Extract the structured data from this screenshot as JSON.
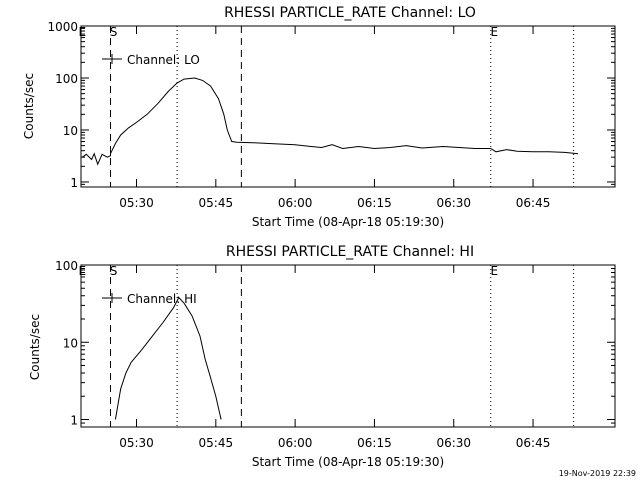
{
  "footer": {
    "timestamp": "19-Nov-2019 22:39"
  },
  "chart_data": [
    {
      "type": "line",
      "title": "RHESSI PARTICLE_RATE Channel: LO",
      "xlabel": "Start Time (08-Apr-18 05:19:30)",
      "ylabel": "Counts/sec",
      "y_scale": "log",
      "ylim": [
        0.8,
        1000
      ],
      "xlim": [
        "05:19:30",
        "07:00:30"
      ],
      "x_ticks": [
        "05:30",
        "05:45",
        "06:00",
        "06:15",
        "06:30",
        "06:45"
      ],
      "y_ticks": [
        "1",
        "10",
        "100",
        "1000"
      ],
      "legend": {
        "entries": [
          "Channel: LO"
        ],
        "placement": "top-left"
      },
      "markers": [
        {
          "label": "S",
          "time": "05:25:05",
          "style": "dashed"
        },
        {
          "label": "",
          "time": "05:49:50",
          "style": "dashed"
        },
        {
          "label": "",
          "time": "05:37:40",
          "style": "dotted"
        },
        {
          "label": "E",
          "time": "06:37:00",
          "style": "dotted"
        },
        {
          "label": "",
          "time": "06:52:40",
          "style": "dotted"
        }
      ],
      "top_marks": [
        {
          "label": "E",
          "time": "05:19:45"
        },
        {
          "label": "S",
          "time": "05:25:40"
        },
        {
          "label": "E",
          "time": "06:37:40"
        }
      ],
      "series": [
        {
          "x": [
            "05:19:45",
            "05:20:30",
            "05:21:30",
            "05:22:00",
            "05:22:40",
            "05:23:30",
            "05:24:30",
            "05:25:05",
            "05:25:05",
            "05:26:00",
            "05:27:00",
            "05:28:30",
            "05:30:00",
            "05:32:00",
            "05:34:00",
            "05:36:00",
            "05:37:40",
            "05:39:00",
            "05:41:00",
            "05:42:30",
            "05:44:00",
            "05:45:30",
            "05:46:30",
            "05:47:10",
            "05:48:00",
            "05:49:00",
            "05:52:00",
            "05:55:00",
            "06:00:00",
            "06:03:00",
            "06:05:00",
            "06:07:00",
            "06:09:00",
            "06:12:00",
            "06:15:00",
            "06:18:00",
            "06:21:00",
            "06:24:00",
            "06:28:00",
            "06:31:00",
            "06:34:00",
            "06:37:00",
            "06:38:00",
            "06:40:00",
            "06:42:00",
            "06:45:00",
            "06:48:00",
            "06:51:00",
            "06:53:30"
          ],
          "y": [
            3,
            3.4,
            2.7,
            3.5,
            2.2,
            3.4,
            3,
            3.2,
            3.5,
            5.5,
            8,
            11,
            14,
            20,
            32,
            55,
            80,
            95,
            100,
            90,
            70,
            40,
            20,
            10,
            6,
            5.8,
            5.7,
            5.5,
            5.2,
            4.8,
            4.6,
            5.2,
            4.4,
            4.8,
            4.4,
            4.6,
            5,
            4.5,
            4.8,
            4.6,
            4.4,
            4.4,
            3.8,
            4.2,
            3.9,
            3.8,
            3.8,
            3.7,
            3.5
          ]
        }
      ]
    },
    {
      "type": "line",
      "title": "RHESSI PARTICLE_RATE Channel: HI",
      "xlabel": "Start Time (08-Apr-18 05:19:30)",
      "ylabel": "Counts/sec",
      "y_scale": "log",
      "ylim": [
        0.8,
        100
      ],
      "xlim": [
        "05:19:30",
        "07:00:30"
      ],
      "x_ticks": [
        "05:30",
        "05:45",
        "06:00",
        "06:15",
        "06:30",
        "06:45"
      ],
      "y_ticks": [
        "1",
        "10",
        "100"
      ],
      "legend": {
        "entries": [
          "Channel: HI"
        ],
        "placement": "top-left"
      },
      "markers": [
        {
          "label": "S",
          "time": "05:25:05",
          "style": "dashed"
        },
        {
          "label": "",
          "time": "05:49:50",
          "style": "dashed"
        },
        {
          "label": "",
          "time": "05:37:40",
          "style": "dotted"
        },
        {
          "label": "E",
          "time": "06:37:00",
          "style": "dotted"
        },
        {
          "label": "",
          "time": "06:52:40",
          "style": "dotted"
        }
      ],
      "top_marks": [
        {
          "label": "E",
          "time": "05:19:45"
        },
        {
          "label": "S",
          "time": "05:25:40"
        },
        {
          "label": "E",
          "time": "06:37:40"
        }
      ],
      "series": [
        {
          "x": [
            "05:26:00",
            "05:27:00",
            "05:28:00",
            "05:29:00",
            "05:31:00",
            "05:33:00",
            "05:35:00",
            "05:37:00",
            "05:38:00",
            "05:39:00",
            "05:40:30",
            "05:42:00",
            "05:43:00",
            "05:44:00",
            "05:45:00",
            "05:45:30",
            "05:46:00"
          ],
          "y": [
            1,
            2.5,
            4,
            5.5,
            8,
            12,
            18,
            28,
            38,
            32,
            22,
            12,
            6,
            3.5,
            2,
            1.4,
            1
          ]
        }
      ]
    }
  ]
}
